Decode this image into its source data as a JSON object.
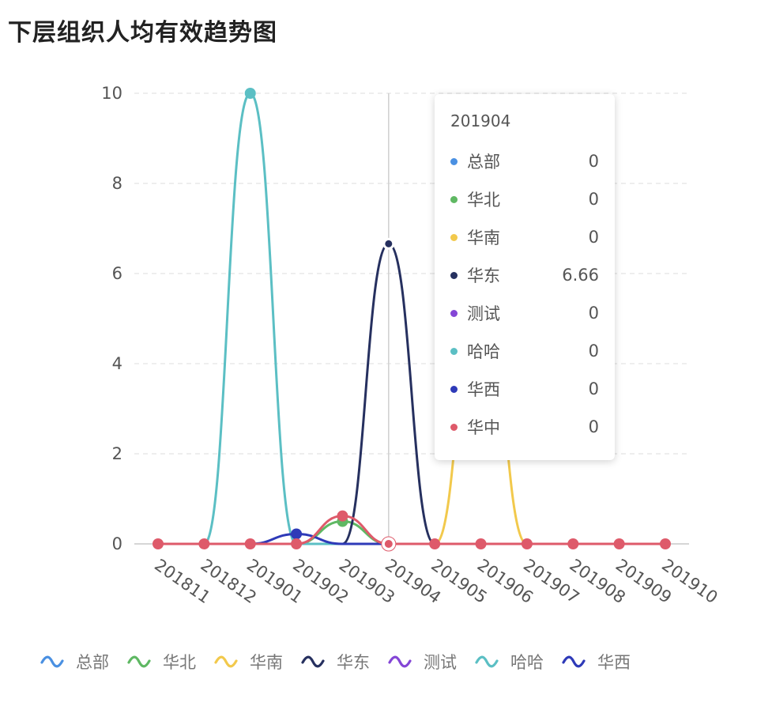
{
  "title": "下层组织人均有效趋势图",
  "chart_data": {
    "type": "line",
    "smooth": true,
    "categories": [
      "201811",
      "201812",
      "201901",
      "201902",
      "201903",
      "201904",
      "201905",
      "201906",
      "201907",
      "201908",
      "201909",
      "201910"
    ],
    "ylim": [
      0,
      10
    ],
    "yticks": [
      0,
      2,
      4,
      6,
      8,
      10
    ],
    "grid": "horizontal-dashed",
    "series": [
      {
        "name": "总部",
        "color": "#4a90e2",
        "values": [
          0,
          0,
          0,
          0,
          0,
          0,
          0,
          0,
          0,
          0,
          0,
          0
        ]
      },
      {
        "name": "华北",
        "color": "#5fb863",
        "values": [
          0,
          0,
          0,
          0,
          0.5,
          0,
          0,
          0,
          0,
          0,
          0,
          0
        ]
      },
      {
        "name": "华南",
        "color": "#f2c94c",
        "values": [
          0,
          0,
          0,
          0,
          0,
          0,
          0,
          6,
          0,
          0,
          0,
          0
        ]
      },
      {
        "name": "华东",
        "color": "#26305f",
        "values": [
          0,
          0,
          0,
          0,
          0,
          6.66,
          0,
          0,
          0,
          0,
          0,
          0
        ]
      },
      {
        "name": "测试",
        "color": "#8446d6",
        "values": [
          0,
          0,
          0,
          0,
          0,
          0,
          0,
          0,
          0,
          0,
          0,
          0
        ]
      },
      {
        "name": "哈哈",
        "color": "#5bbfc4",
        "values": [
          0,
          0,
          10,
          0,
          0,
          0,
          0,
          0,
          0,
          0,
          0,
          0
        ]
      },
      {
        "name": "华西",
        "color": "#2e3ab8",
        "values": [
          0,
          0,
          0,
          0.22,
          0,
          0,
          0,
          0,
          0,
          0,
          0,
          0
        ]
      },
      {
        "name": "华中",
        "color": "#de5a6a",
        "values": [
          0,
          0,
          0,
          0,
          0.62,
          0,
          0,
          0,
          0,
          0,
          0,
          0
        ]
      }
    ]
  },
  "tooltip": {
    "title": "201904",
    "rows": [
      {
        "name": "总部",
        "value": "0",
        "color": "#4a90e2"
      },
      {
        "name": "华北",
        "value": "0",
        "color": "#5fb863"
      },
      {
        "name": "华南",
        "value": "0",
        "color": "#f2c94c"
      },
      {
        "name": "华东",
        "value": "6.66",
        "color": "#26305f"
      },
      {
        "name": "测试",
        "value": "0",
        "color": "#8446d6"
      },
      {
        "name": "哈哈",
        "value": "0",
        "color": "#5bbfc4"
      },
      {
        "name": "华西",
        "value": "0",
        "color": "#2e3ab8"
      },
      {
        "name": "华中",
        "value": "0",
        "color": "#de5a6a"
      }
    ]
  },
  "legend": [
    {
      "name": "总部",
      "color": "#4a90e2"
    },
    {
      "name": "华北",
      "color": "#5fb863"
    },
    {
      "name": "华南",
      "color": "#f2c94c"
    },
    {
      "name": "华东",
      "color": "#26305f"
    },
    {
      "name": "测试",
      "color": "#8446d6"
    },
    {
      "name": "哈哈",
      "color": "#5bbfc4"
    },
    {
      "name": "华西",
      "color": "#2e3ab8"
    }
  ]
}
